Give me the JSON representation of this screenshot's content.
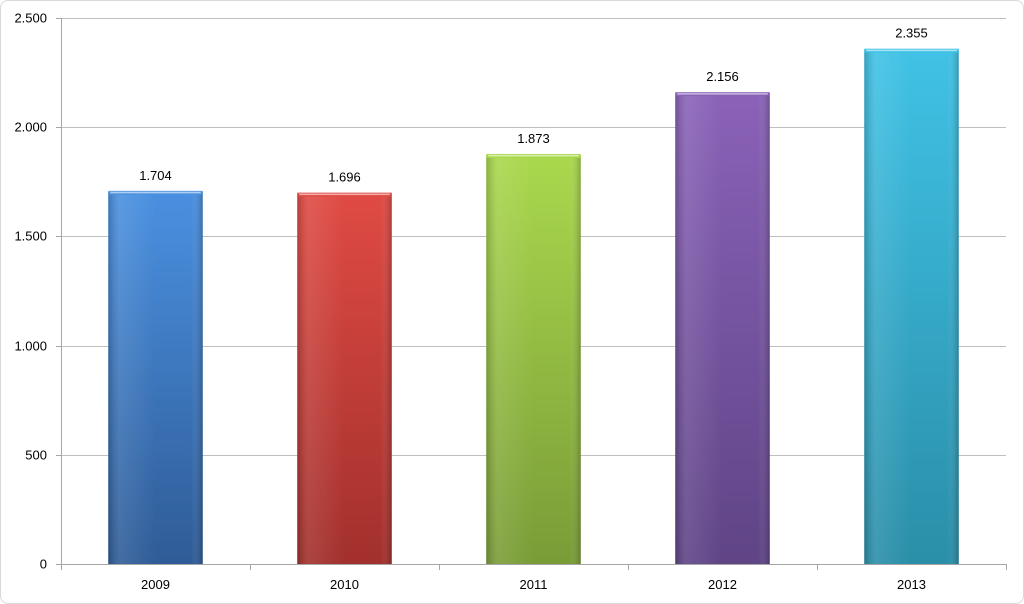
{
  "chart_data": {
    "type": "bar",
    "title": "",
    "xlabel": "",
    "ylabel": "",
    "categories": [
      "2009",
      "2010",
      "2011",
      "2012",
      "2013"
    ],
    "values": [
      1704,
      1696,
      1873,
      2156,
      2355
    ],
    "value_labels": [
      "1.704",
      "1.696",
      "1.873",
      "2.156",
      "2.355"
    ],
    "ylim": [
      0,
      2500
    ],
    "yticks": [
      0,
      500,
      1000,
      1500,
      2000,
      2500
    ],
    "ytick_labels": [
      "0",
      "500",
      "1.000",
      "1.500",
      "2.000",
      "2.500"
    ],
    "grid": true,
    "legend": "none",
    "colors": [
      {
        "top": "#4a90e0",
        "bottom": "#2f5c97"
      },
      {
        "top": "#e04a44",
        "bottom": "#a2302c"
      },
      {
        "top": "#a9d84d",
        "bottom": "#7a9c37"
      },
      {
        "top": "#8a62b8",
        "bottom": "#5f4486"
      },
      {
        "top": "#40c2e6",
        "bottom": "#2a8ea8"
      }
    ]
  }
}
